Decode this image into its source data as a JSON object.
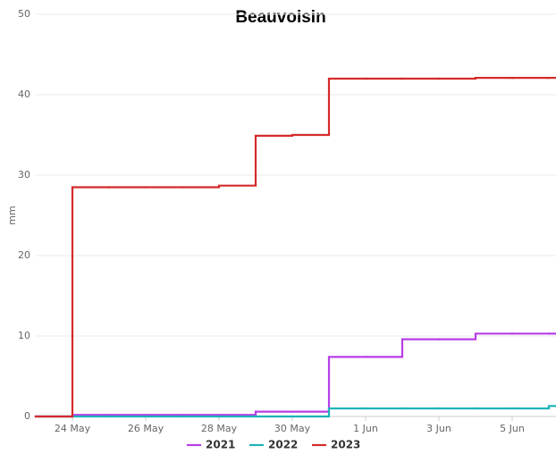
{
  "chart_data": {
    "type": "step",
    "title": "Beauvoisin",
    "y_label": "mm",
    "categories": [
      null,
      "24 May",
      null,
      "26 May",
      null,
      "28 May",
      null,
      "30 May",
      null,
      "1 Jun",
      null,
      "3 Jun",
      null,
      "5 Jun",
      null
    ],
    "series": [
      {
        "name": "2021",
        "color": "#b83ee6",
        "values": [
          0,
          0.2,
          0.2,
          0.2,
          0.2,
          0.2,
          0.6,
          0.6,
          7.4,
          7.4,
          9.6,
          9.6,
          10.3,
          10.3,
          10.3
        ]
      },
      {
        "name": "2022",
        "color": "#1fb3b8",
        "values": [
          0,
          0,
          0,
          0,
          0,
          0,
          0,
          0,
          1.0,
          1.0,
          1.0,
          1.0,
          1.0,
          1.0,
          1.3
        ]
      },
      {
        "name": "2023",
        "color": "#d42a2a",
        "values": [
          0,
          28.5,
          28.5,
          28.5,
          28.5,
          28.7,
          34.9,
          35.0,
          42.0,
          42.0,
          42.0,
          42.0,
          42.1,
          42.1,
          42.1
        ]
      }
    ],
    "ylim": [
      0,
      50
    ],
    "yticks": [
      0,
      10,
      20,
      30,
      40,
      50
    ],
    "grid": true,
    "legend": "bottom"
  }
}
